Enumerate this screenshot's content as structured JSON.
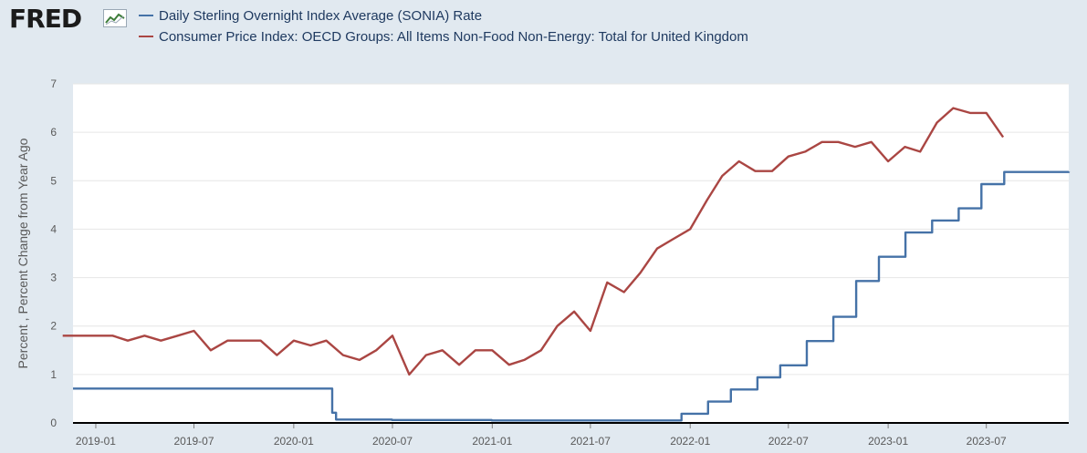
{
  "header": {
    "logo_text": "FRED",
    "logo_icon": "trend-line-icon"
  },
  "colors": {
    "background": "#e1e9f0",
    "plot_background": "#ffffff",
    "sonia": "#4572a7",
    "cpi": "#aa4643",
    "grid": "#e6e6e6",
    "axis": "#000000"
  },
  "chart_data": {
    "type": "line",
    "ylabel": "Percent , Percent Change from Year Ago",
    "xlabel": "",
    "ylim": [
      0,
      7
    ],
    "yticks": [
      0,
      1,
      2,
      3,
      4,
      5,
      6,
      7
    ],
    "xlim": [
      "2018-11-20",
      "2023-11-30"
    ],
    "xtick_labels": [
      "2019-01",
      "2019-07",
      "2020-01",
      "2020-07",
      "2021-01",
      "2021-07",
      "2022-01",
      "2022-07",
      "2023-01",
      "2023-07"
    ],
    "grid": true,
    "legend_position": "top-left",
    "series": [
      {
        "name": "Daily Sterling Overnight Index Average (SONIA) Rate",
        "step": true,
        "points": [
          [
            "2018-11-20",
            0.71
          ],
          [
            "2020-03-11",
            0.71
          ],
          [
            "2020-03-12",
            0.21
          ],
          [
            "2020-03-19",
            0.07
          ],
          [
            "2020-06-30",
            0.06
          ],
          [
            "2020-12-31",
            0.05
          ],
          [
            "2021-12-15",
            0.05
          ],
          [
            "2021-12-16",
            0.19
          ],
          [
            "2022-02-03",
            0.44
          ],
          [
            "2022-03-17",
            0.69
          ],
          [
            "2022-05-05",
            0.94
          ],
          [
            "2022-06-16",
            1.19
          ],
          [
            "2022-08-04",
            1.69
          ],
          [
            "2022-09-22",
            2.19
          ],
          [
            "2022-11-03",
            2.93
          ],
          [
            "2022-12-15",
            3.43
          ],
          [
            "2023-02-02",
            3.93
          ],
          [
            "2023-03-23",
            4.18
          ],
          [
            "2023-05-11",
            4.43
          ],
          [
            "2023-06-22",
            4.93
          ],
          [
            "2023-08-03",
            5.18
          ],
          [
            "2023-11-30",
            5.19
          ]
        ]
      },
      {
        "name": "Consumer Price Index: OECD Groups: All Items Non-Food Non-Energy: Total for United Kingdom",
        "step": false,
        "points": [
          [
            "2018-11-01",
            1.8
          ],
          [
            "2018-12-01",
            1.8
          ],
          [
            "2019-01-01",
            1.8
          ],
          [
            "2019-02-01",
            1.8
          ],
          [
            "2019-03-01",
            1.7
          ],
          [
            "2019-04-01",
            1.8
          ],
          [
            "2019-05-01",
            1.7
          ],
          [
            "2019-06-01",
            1.8
          ],
          [
            "2019-07-01",
            1.9
          ],
          [
            "2019-08-01",
            1.5
          ],
          [
            "2019-09-01",
            1.7
          ],
          [
            "2019-10-01",
            1.7
          ],
          [
            "2019-11-01",
            1.7
          ],
          [
            "2019-12-01",
            1.4
          ],
          [
            "2020-01-01",
            1.7
          ],
          [
            "2020-02-01",
            1.6
          ],
          [
            "2020-03-01",
            1.7
          ],
          [
            "2020-04-01",
            1.4
          ],
          [
            "2020-05-01",
            1.3
          ],
          [
            "2020-06-01",
            1.5
          ],
          [
            "2020-07-01",
            1.8
          ],
          [
            "2020-08-01",
            1.0
          ],
          [
            "2020-09-01",
            1.4
          ],
          [
            "2020-10-01",
            1.5
          ],
          [
            "2020-11-01",
            1.2
          ],
          [
            "2020-12-01",
            1.5
          ],
          [
            "2021-01-01",
            1.5
          ],
          [
            "2021-02-01",
            1.2
          ],
          [
            "2021-03-01",
            1.3
          ],
          [
            "2021-04-01",
            1.5
          ],
          [
            "2021-05-01",
            2.0
          ],
          [
            "2021-06-01",
            2.3
          ],
          [
            "2021-07-01",
            1.9
          ],
          [
            "2021-08-01",
            2.9
          ],
          [
            "2021-09-01",
            2.7
          ],
          [
            "2021-10-01",
            3.1
          ],
          [
            "2021-11-01",
            3.6
          ],
          [
            "2021-12-01",
            3.8
          ],
          [
            "2022-01-01",
            4.0
          ],
          [
            "2022-02-01",
            4.6
          ],
          [
            "2022-03-01",
            5.1
          ],
          [
            "2022-04-01",
            5.4
          ],
          [
            "2022-05-01",
            5.2
          ],
          [
            "2022-06-01",
            5.2
          ],
          [
            "2022-07-01",
            5.5
          ],
          [
            "2022-08-01",
            5.6
          ],
          [
            "2022-09-01",
            5.8
          ],
          [
            "2022-10-01",
            5.8
          ],
          [
            "2022-11-01",
            5.7
          ],
          [
            "2022-12-01",
            5.8
          ],
          [
            "2023-01-01",
            5.4
          ],
          [
            "2023-02-01",
            5.7
          ],
          [
            "2023-03-01",
            5.6
          ],
          [
            "2023-04-01",
            6.2
          ],
          [
            "2023-05-01",
            6.5
          ],
          [
            "2023-06-01",
            6.4
          ],
          [
            "2023-07-01",
            6.4
          ],
          [
            "2023-08-01",
            5.9
          ]
        ]
      }
    ]
  }
}
